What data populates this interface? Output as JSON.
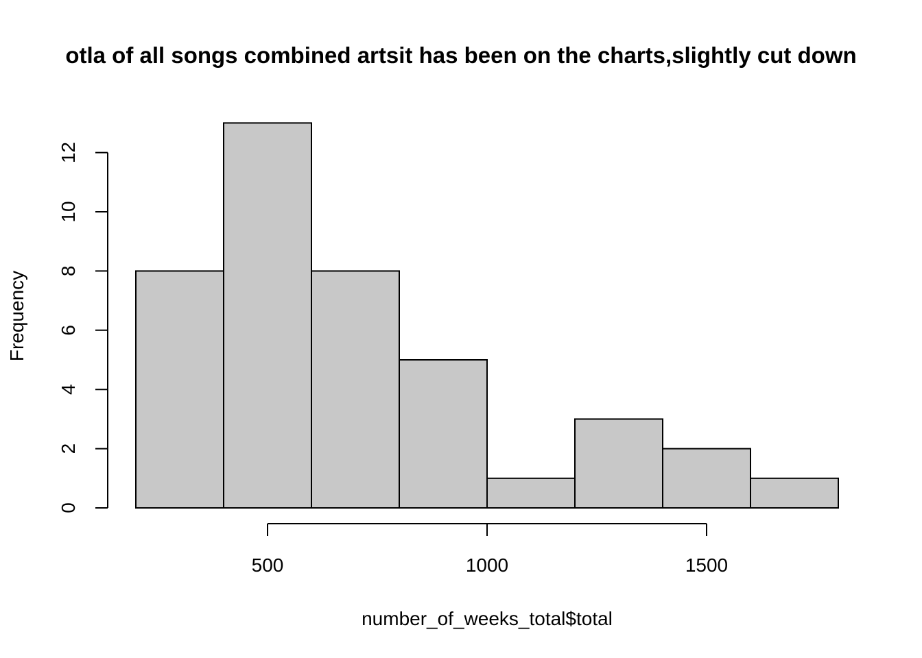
{
  "chart_data": {
    "type": "bar",
    "title": "otla of all songs combined artsit has been on the charts,slightly cut down",
    "xlabel": "number_of_weeks_total$total",
    "ylabel": "Frequency",
    "bins": [
      {
        "start": 200,
        "end": 400,
        "count": 8
      },
      {
        "start": 400,
        "end": 600,
        "count": 13
      },
      {
        "start": 600,
        "end": 800,
        "count": 8
      },
      {
        "start": 800,
        "end": 1000,
        "count": 5
      },
      {
        "start": 1000,
        "end": 1200,
        "count": 1
      },
      {
        "start": 1200,
        "end": 1400,
        "count": 3
      },
      {
        "start": 1400,
        "end": 1600,
        "count": 2
      },
      {
        "start": 1600,
        "end": 1800,
        "count": 1
      }
    ],
    "xlim": [
      200,
      1800
    ],
    "ylim": [
      0,
      12
    ],
    "x_ticks": [
      500,
      1000,
      1500
    ],
    "y_ticks": [
      0,
      2,
      4,
      6,
      8,
      10,
      12
    ],
    "bar_color": "#c8c8c8",
    "edge_color": "#000000",
    "grid": false,
    "legend": "none"
  }
}
